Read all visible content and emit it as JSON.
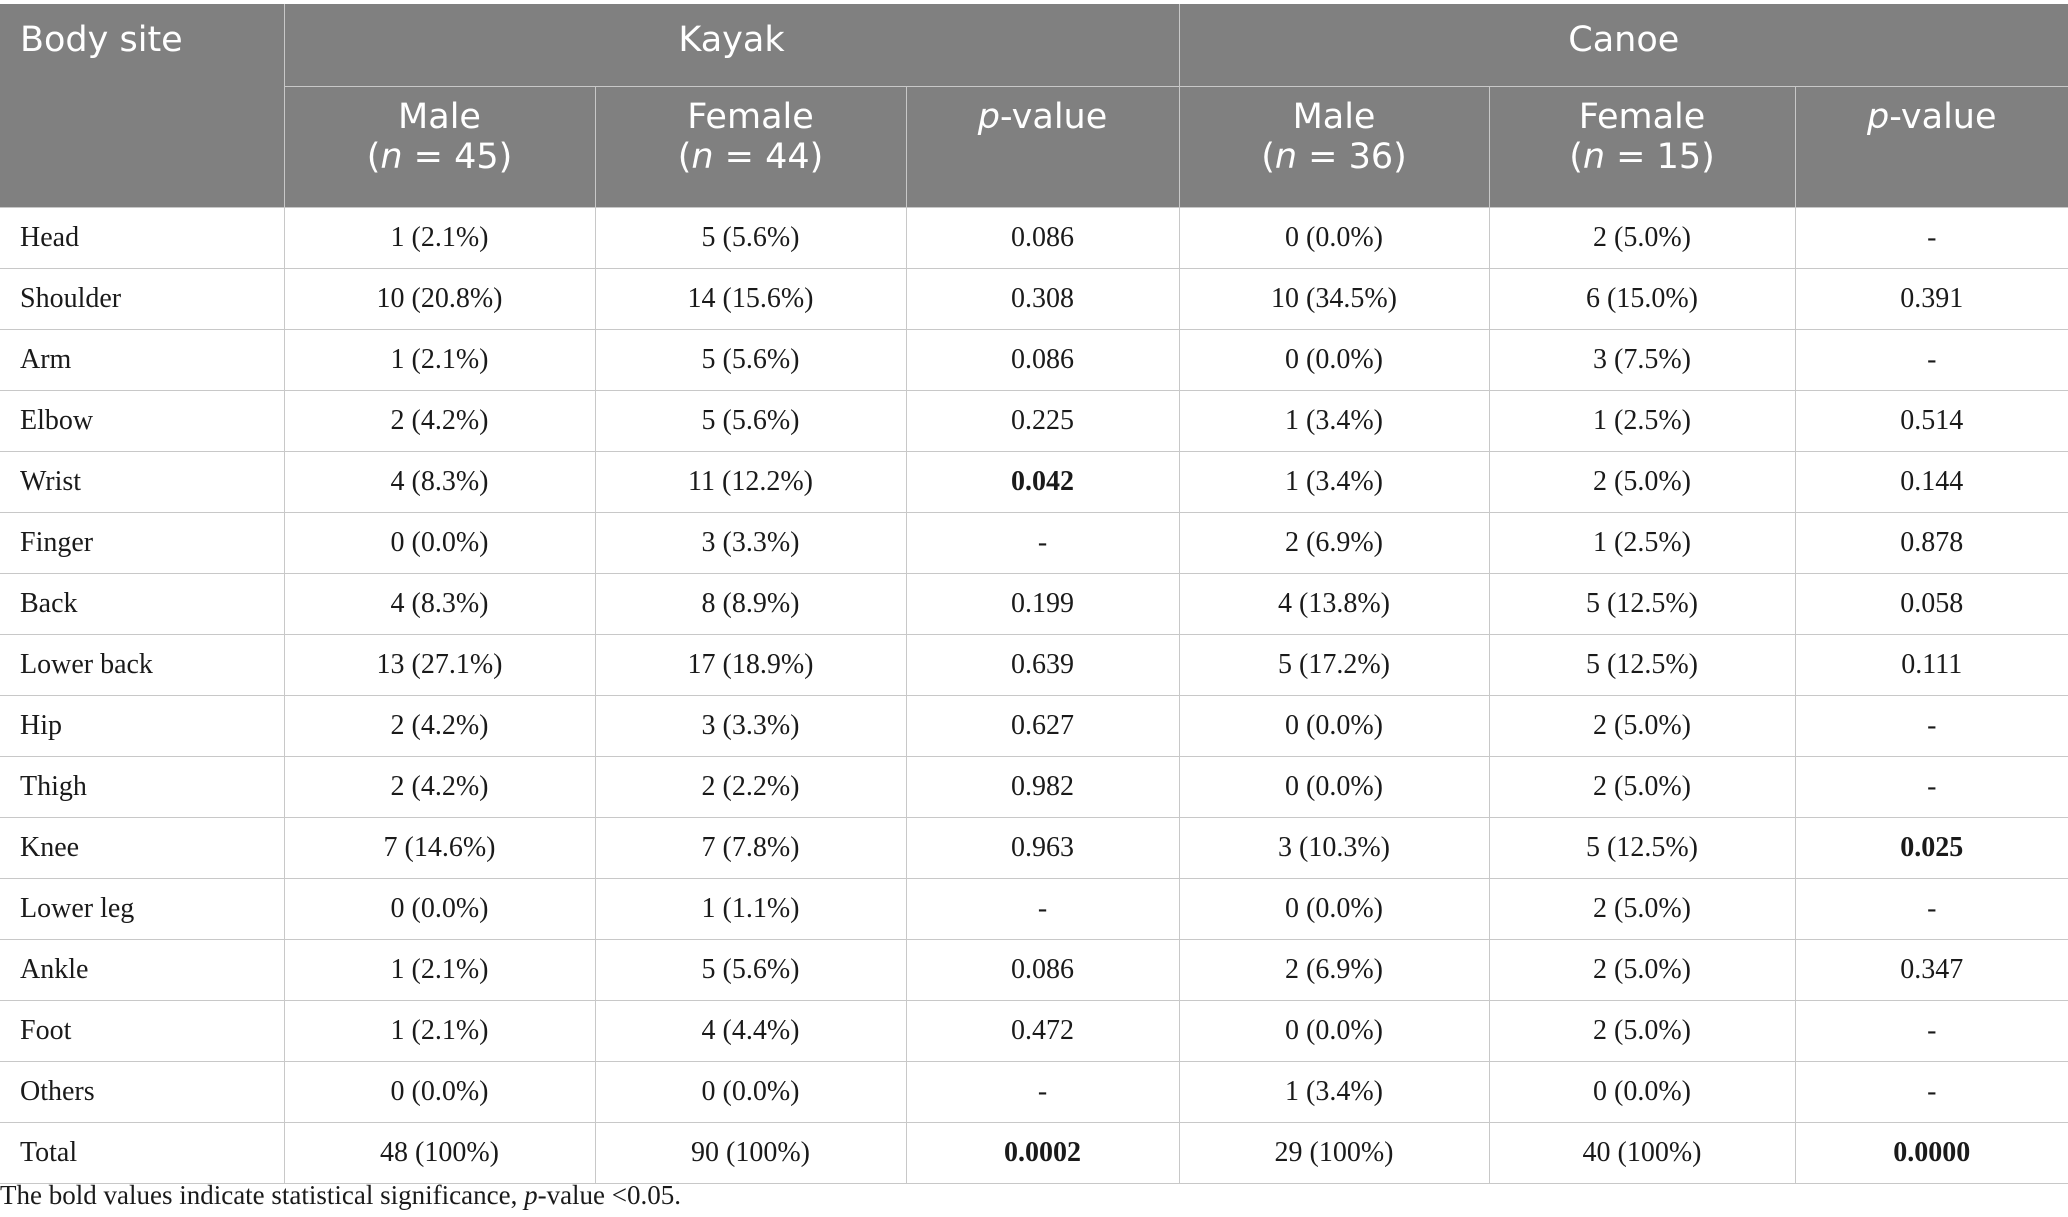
{
  "header": {
    "body_site": "Body site",
    "groups": [
      "Kayak",
      "Canoe"
    ],
    "sub": [
      {
        "label": "Male",
        "n": "45"
      },
      {
        "label": "Female",
        "n": "44"
      },
      {
        "label": "p",
        "suffix": "-value"
      },
      {
        "label": "Male",
        "n": "36"
      },
      {
        "label": "Female",
        "n": "15"
      },
      {
        "label": "p",
        "suffix": "-value"
      }
    ],
    "n_prefix": "(",
    "n_letter": "n",
    "n_eq": " = ",
    "n_suffix": ")"
  },
  "rows": [
    {
      "site": "Head",
      "cells": [
        "1 (2.1%)",
        "5 (5.6%)",
        "0.086",
        "0 (0.0%)",
        "2 (5.0%)",
        "-"
      ]
    },
    {
      "site": "Shoulder",
      "cells": [
        "10 (20.8%)",
        "14 (15.6%)",
        "0.308",
        "10 (34.5%)",
        "6 (15.0%)",
        "0.391"
      ]
    },
    {
      "site": "Arm",
      "cells": [
        "1 (2.1%)",
        "5 (5.6%)",
        "0.086",
        "0 (0.0%)",
        "3 (7.5%)",
        "-"
      ]
    },
    {
      "site": "Elbow",
      "cells": [
        "2 (4.2%)",
        "5 (5.6%)",
        "0.225",
        "1 (3.4%)",
        "1 (2.5%)",
        "0.514"
      ]
    },
    {
      "site": "Wrist",
      "cells": [
        "4 (8.3%)",
        "11 (12.2%)",
        "0.042",
        "1 (3.4%)",
        "2 (5.0%)",
        "0.144"
      ],
      "bold": [
        2
      ]
    },
    {
      "site": "Finger",
      "cells": [
        "0 (0.0%)",
        "3 (3.3%)",
        "-",
        "2 (6.9%)",
        "1 (2.5%)",
        "0.878"
      ]
    },
    {
      "site": "Back",
      "cells": [
        "4 (8.3%)",
        "8 (8.9%)",
        "0.199",
        "4 (13.8%)",
        "5 (12.5%)",
        "0.058"
      ]
    },
    {
      "site": "Lower back",
      "cells": [
        "13 (27.1%)",
        "17 (18.9%)",
        "0.639",
        "5 (17.2%)",
        "5 (12.5%)",
        "0.111"
      ]
    },
    {
      "site": "Hip",
      "cells": [
        "2 (4.2%)",
        "3 (3.3%)",
        "0.627",
        "0 (0.0%)",
        "2 (5.0%)",
        "-"
      ]
    },
    {
      "site": "Thigh",
      "cells": [
        "2 (4.2%)",
        "2 (2.2%)",
        "0.982",
        "0 (0.0%)",
        "2 (5.0%)",
        "-"
      ]
    },
    {
      "site": "Knee",
      "cells": [
        "7 (14.6%)",
        "7 (7.8%)",
        "0.963",
        "3 (10.3%)",
        "5 (12.5%)",
        "0.025"
      ],
      "bold": [
        5
      ]
    },
    {
      "site": "Lower leg",
      "cells": [
        "0 (0.0%)",
        "1 (1.1%)",
        "-",
        "0 (0.0%)",
        "2 (5.0%)",
        "-"
      ]
    },
    {
      "site": "Ankle",
      "cells": [
        "1 (2.1%)",
        "5 (5.6%)",
        "0.086",
        "2 (6.9%)",
        "2 (5.0%)",
        "0.347"
      ]
    },
    {
      "site": "Foot",
      "cells": [
        "1 (2.1%)",
        "4 (4.4%)",
        "0.472",
        "0 (0.0%)",
        "2 (5.0%)",
        "-"
      ]
    },
    {
      "site": "Others",
      "cells": [
        "0 (0.0%)",
        "0 (0.0%)",
        "-",
        "1 (3.4%)",
        "0 (0.0%)",
        "-"
      ]
    },
    {
      "site": "Total",
      "cells": [
        "48 (100%)",
        "90 (100%)",
        "0.0002",
        "29 (100%)",
        "40 (100%)",
        "0.0000"
      ],
      "bold": [
        2,
        5
      ]
    }
  ],
  "footnote": {
    "text_before": "The bold values indicate statistical significance, ",
    "p": "p",
    "text_after": "-value <0.05."
  }
}
